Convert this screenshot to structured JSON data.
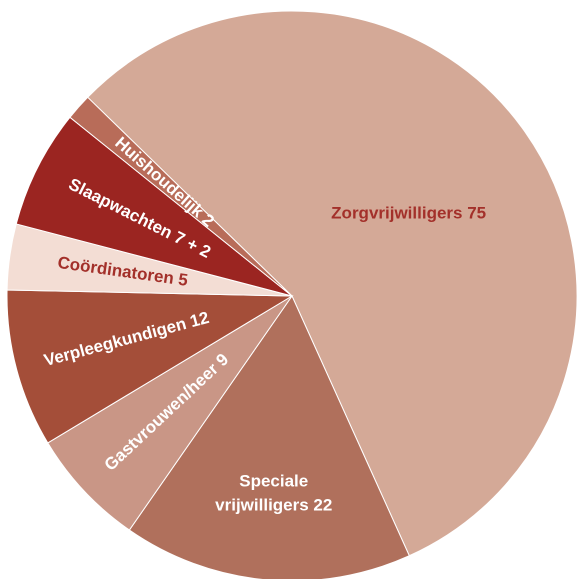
{
  "chart_data": {
    "type": "pie",
    "categories": [
      "Zorgvrijwilligers 75",
      "Speciale vrijwilligers 22",
      "Gastvrouwen/heer 9",
      "Verpleegkundigen 12",
      "Coördinatoren 5",
      "Slaapwachten 7 + 2",
      "Huishoudelijk 2"
    ],
    "values": [
      75,
      22,
      9,
      12,
      5,
      9,
      2
    ],
    "colors": [
      "#d4a997",
      "#b0705c",
      "#c99686",
      "#a44e39",
      "#f3ddd4",
      "#9b2521",
      "#b86c59"
    ],
    "label_colors": [
      "#a3302a",
      "#ffffff",
      "#ffffff",
      "#ffffff",
      "#a3302a",
      "#ffffff",
      "#ffffff"
    ]
  }
}
